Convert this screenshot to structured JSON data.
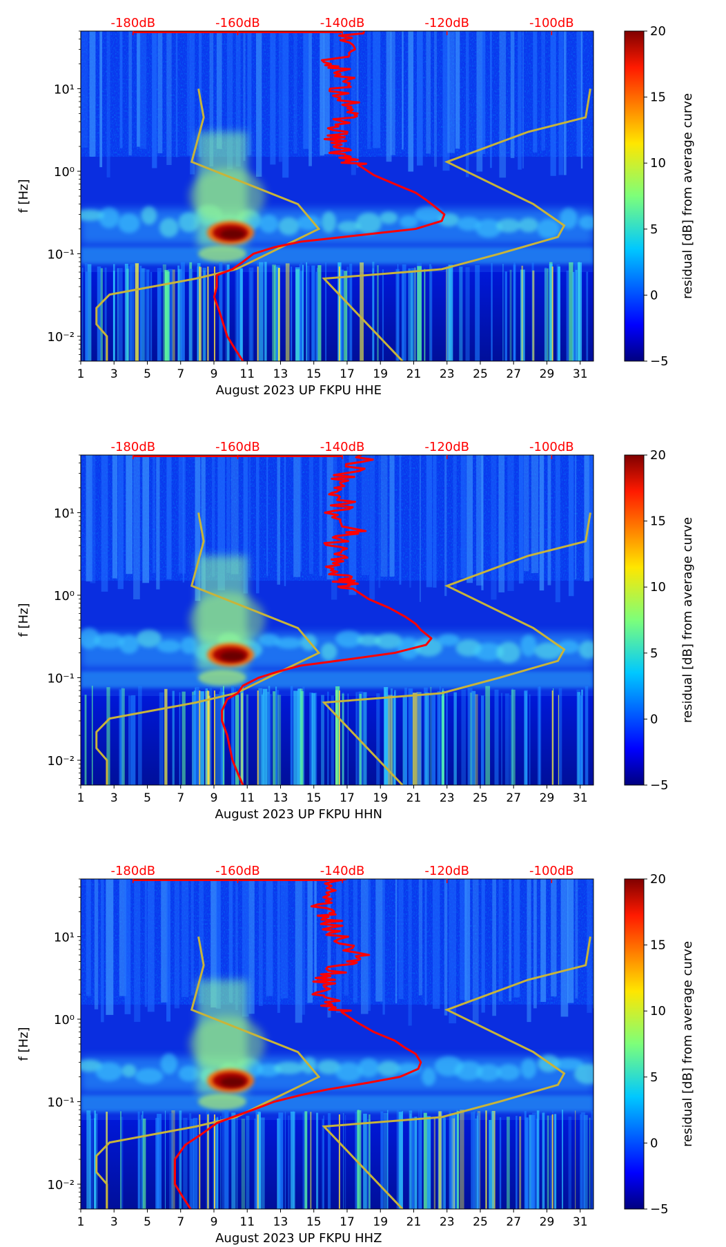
{
  "figure": {
    "title": ""
  },
  "colorbar": {
    "label": "residual [dB] from average curve",
    "vmin": -5,
    "vmax": 20,
    "ticks": [
      "20",
      "15",
      "10",
      "5",
      "0",
      "−5"
    ],
    "tick_values": [
      20,
      15,
      10,
      5,
      0,
      -5
    ],
    "colormap": "jet",
    "colors": [
      "#00007f",
      "#0000ff",
      "#007fff",
      "#00ffff",
      "#7fff7f",
      "#ffff00",
      "#ff7f00",
      "#ff0000",
      "#7f0000"
    ]
  },
  "colors": {
    "psd_curve": "#ff0000",
    "noise_model": "#c8b43a",
    "db_labels": "#ff0000",
    "background": "#000088"
  },
  "chart_data": [
    {
      "type": "heatmap",
      "title": "",
      "xlabel": "August 2023 UP FKPU  HHE",
      "ylabel": "f [Hz]",
      "xlim": [
        1,
        31.8
      ],
      "ylim": [
        0.005,
        50
      ],
      "yscale": "log",
      "x_ticks": [
        "1",
        "3",
        "5",
        "7",
        "9",
        "11",
        "13",
        "15",
        "17",
        "19",
        "21",
        "23",
        "25",
        "27",
        "29",
        "31"
      ],
      "x_tick_values": [
        1,
        3,
        5,
        7,
        9,
        11,
        13,
        15,
        17,
        19,
        21,
        23,
        25,
        27,
        29,
        31
      ],
      "y_ticks": [
        "10⁻²",
        "10⁻¹",
        "10⁰",
        "10¹"
      ],
      "y_tick_values": [
        0.01,
        0.1,
        1,
        10
      ],
      "top_axis_labels": [
        "-180dB",
        "-160dB",
        "-140dB",
        "-120dB",
        "-100dB"
      ],
      "top_axis_values": [
        -180,
        -160,
        -140,
        -120,
        -100
      ],
      "top_axis_range_db": [
        -190,
        -92
      ],
      "hotspot": {
        "day": 10,
        "freq_hz": 0.18,
        "residual_db": 20
      },
      "noise_model": [
        [
          10,
          -167.5
        ],
        [
          4.5,
          -166.5
        ],
        [
          1.3,
          -168.8
        ],
        [
          0.4,
          -148.5
        ],
        [
          0.2,
          -144.5
        ],
        [
          0.065,
          -160.3
        ],
        [
          0.05,
          -168
        ],
        [
          0.032,
          -184.5
        ],
        [
          0.022,
          -187
        ],
        [
          0.014,
          -187
        ],
        [
          0.01,
          -185
        ],
        [
          0.005,
          -185
        ]
      ],
      "noise_model_high": [
        [
          10,
          -92.6
        ],
        [
          4.5,
          -93.5
        ],
        [
          3,
          -104.5
        ],
        [
          1.3,
          -120
        ],
        [
          0.4,
          -103.5
        ],
        [
          0.22,
          -97.6
        ],
        [
          0.16,
          -98.8
        ],
        [
          0.1,
          -110
        ],
        [
          0.065,
          -121
        ],
        [
          0.05,
          -143.5
        ],
        [
          0.005,
          -128.5
        ]
      ],
      "psd_curve": [
        [
          50,
          -138
        ],
        [
          30,
          -140
        ],
        [
          20,
          -142
        ],
        [
          15,
          -139
        ],
        [
          10,
          -141
        ],
        [
          6,
          -137
        ],
        [
          4.5,
          -140
        ],
        [
          3,
          -141
        ],
        [
          2,
          -141
        ],
        [
          1.5,
          -140
        ],
        [
          1.2,
          -137
        ],
        [
          0.9,
          -134
        ],
        [
          0.7,
          -130
        ],
        [
          0.55,
          -126
        ],
        [
          0.45,
          -124
        ],
        [
          0.38,
          -122.5
        ],
        [
          0.3,
          -120.5
        ],
        [
          0.25,
          -121
        ],
        [
          0.2,
          -126
        ],
        [
          0.17,
          -136
        ],
        [
          0.14,
          -148
        ],
        [
          0.12,
          -153
        ],
        [
          0.1,
          -157
        ],
        [
          0.08,
          -159
        ],
        [
          0.065,
          -161
        ],
        [
          0.055,
          -164
        ],
        [
          0.04,
          -164
        ],
        [
          0.03,
          -164.5
        ],
        [
          0.02,
          -163.5
        ],
        [
          0.01,
          -162
        ],
        [
          0.007,
          -160.5
        ],
        [
          0.005,
          -159
        ]
      ]
    },
    {
      "type": "heatmap",
      "title": "",
      "xlabel": "August 2023 UP FKPU  HHN",
      "ylabel": "f [Hz]",
      "xlim": [
        1,
        31.8
      ],
      "ylim": [
        0.005,
        50
      ],
      "yscale": "log",
      "x_ticks": [
        "1",
        "3",
        "5",
        "7",
        "9",
        "11",
        "13",
        "15",
        "17",
        "19",
        "21",
        "23",
        "25",
        "27",
        "29",
        "31"
      ],
      "x_tick_values": [
        1,
        3,
        5,
        7,
        9,
        11,
        13,
        15,
        17,
        19,
        21,
        23,
        25,
        27,
        29,
        31
      ],
      "y_ticks": [
        "10⁻²",
        "10⁻¹",
        "10⁰",
        "10¹"
      ],
      "y_tick_values": [
        0.01,
        0.1,
        1,
        10
      ],
      "top_axis_labels": [
        "-180dB",
        "-160dB",
        "-140dB",
        "-120dB",
        "-100dB"
      ],
      "top_axis_values": [
        -180,
        -160,
        -140,
        -120,
        -100
      ],
      "top_axis_range_db": [
        -190,
        -92
      ],
      "hotspot": {
        "day": 10,
        "freq_hz": 0.19,
        "residual_db": 18
      },
      "noise_model": [
        [
          10,
          -167.5
        ],
        [
          4.5,
          -166.5
        ],
        [
          1.3,
          -168.8
        ],
        [
          0.4,
          -148.5
        ],
        [
          0.2,
          -144.5
        ],
        [
          0.065,
          -160.3
        ],
        [
          0.05,
          -168
        ],
        [
          0.032,
          -184.5
        ],
        [
          0.022,
          -187
        ],
        [
          0.014,
          -187
        ],
        [
          0.01,
          -185
        ],
        [
          0.005,
          -185
        ]
      ],
      "noise_model_high": [
        [
          10,
          -92.6
        ],
        [
          4.5,
          -93.5
        ],
        [
          3,
          -104.5
        ],
        [
          1.3,
          -120
        ],
        [
          0.4,
          -103.5
        ],
        [
          0.22,
          -97.6
        ],
        [
          0.16,
          -98.8
        ],
        [
          0.1,
          -110
        ],
        [
          0.065,
          -121
        ],
        [
          0.05,
          -143.5
        ],
        [
          0.005,
          -128.5
        ]
      ],
      "psd_curve": [
        [
          50,
          -135
        ],
        [
          30,
          -139
        ],
        [
          20,
          -142
        ],
        [
          15,
          -139
        ],
        [
          10,
          -141
        ],
        [
          6,
          -138
        ],
        [
          4.5,
          -141
        ],
        [
          3,
          -141
        ],
        [
          2,
          -141
        ],
        [
          1.5,
          -140
        ],
        [
          1.2,
          -138
        ],
        [
          0.9,
          -135
        ],
        [
          0.7,
          -131
        ],
        [
          0.55,
          -128
        ],
        [
          0.45,
          -126
        ],
        [
          0.38,
          -125
        ],
        [
          0.3,
          -123
        ],
        [
          0.25,
          -124
        ],
        [
          0.2,
          -130
        ],
        [
          0.17,
          -138
        ],
        [
          0.14,
          -148
        ],
        [
          0.12,
          -152
        ],
        [
          0.1,
          -156
        ],
        [
          0.08,
          -159
        ],
        [
          0.065,
          -160
        ],
        [
          0.055,
          -162
        ],
        [
          0.04,
          -163
        ],
        [
          0.03,
          -163
        ],
        [
          0.02,
          -162
        ],
        [
          0.01,
          -161
        ],
        [
          0.007,
          -160
        ],
        [
          0.005,
          -159
        ]
      ]
    },
    {
      "type": "heatmap",
      "title": "",
      "xlabel": "August 2023 UP FKPU  HHZ",
      "ylabel": "f [Hz]",
      "xlim": [
        1,
        31.8
      ],
      "ylim": [
        0.005,
        50
      ],
      "yscale": "log",
      "x_ticks": [
        "1",
        "3",
        "5",
        "7",
        "9",
        "11",
        "13",
        "15",
        "17",
        "19",
        "21",
        "23",
        "25",
        "27",
        "29",
        "31"
      ],
      "x_tick_values": [
        1,
        3,
        5,
        7,
        9,
        11,
        13,
        15,
        17,
        19,
        21,
        23,
        25,
        27,
        29,
        31
      ],
      "y_ticks": [
        "10⁻²",
        "10⁻¹",
        "10⁰",
        "10¹"
      ],
      "y_tick_values": [
        0.01,
        0.1,
        1,
        10
      ],
      "top_axis_labels": [
        "-180dB",
        "-160dB",
        "-140dB",
        "-120dB",
        "-100dB"
      ],
      "top_axis_values": [
        -180,
        -160,
        -140,
        -120,
        -100
      ],
      "top_axis_range_db": [
        -190,
        -92
      ],
      "hotspot": {
        "day": 10,
        "freq_hz": 0.18,
        "residual_db": 20
      },
      "noise_model": [
        [
          10,
          -167.5
        ],
        [
          4.5,
          -166.5
        ],
        [
          1.3,
          -168.8
        ],
        [
          0.4,
          -148.5
        ],
        [
          0.2,
          -144.5
        ],
        [
          0.065,
          -160.3
        ],
        [
          0.05,
          -168
        ],
        [
          0.032,
          -184.5
        ],
        [
          0.022,
          -187
        ],
        [
          0.014,
          -187
        ],
        [
          0.01,
          -185
        ],
        [
          0.005,
          -185
        ]
      ],
      "noise_model_high": [
        [
          10,
          -92.6
        ],
        [
          4.5,
          -93.5
        ],
        [
          3,
          -104.5
        ],
        [
          1.3,
          -120
        ],
        [
          0.4,
          -103.5
        ],
        [
          0.22,
          -97.6
        ],
        [
          0.16,
          -98.8
        ],
        [
          0.1,
          -110
        ],
        [
          0.065,
          -121
        ],
        [
          0.05,
          -143.5
        ],
        [
          0.005,
          -128.5
        ]
      ],
      "psd_curve": [
        [
          50,
          -141
        ],
        [
          30,
          -143
        ],
        [
          20,
          -144
        ],
        [
          15,
          -142
        ],
        [
          10,
          -141
        ],
        [
          6,
          -137
        ],
        [
          4.5,
          -140
        ],
        [
          3,
          -143
        ],
        [
          2,
          -144
        ],
        [
          1.5,
          -142
        ],
        [
          1.2,
          -140
        ],
        [
          0.9,
          -137
        ],
        [
          0.7,
          -134
        ],
        [
          0.55,
          -130
        ],
        [
          0.45,
          -128
        ],
        [
          0.38,
          -126
        ],
        [
          0.3,
          -125
        ],
        [
          0.25,
          -125.5
        ],
        [
          0.2,
          -129
        ],
        [
          0.17,
          -135
        ],
        [
          0.14,
          -143
        ],
        [
          0.12,
          -148
        ],
        [
          0.1,
          -153
        ],
        [
          0.08,
          -157
        ],
        [
          0.065,
          -161
        ],
        [
          0.055,
          -164
        ],
        [
          0.04,
          -167
        ],
        [
          0.03,
          -170
        ],
        [
          0.02,
          -172
        ],
        [
          0.01,
          -172
        ],
        [
          0.007,
          -170.5
        ],
        [
          0.005,
          -169
        ]
      ]
    }
  ]
}
